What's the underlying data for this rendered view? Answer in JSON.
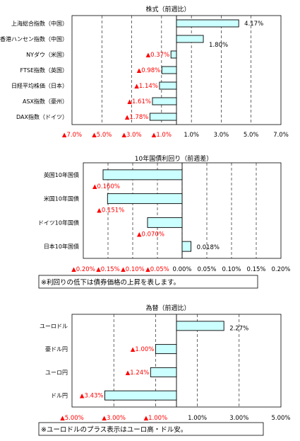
{
  "colors": {
    "bar_fill": "#ccffff",
    "bar_stroke": "#000000",
    "negative_label": "#ff0000",
    "text": "#000000"
  },
  "notes": {
    "bonds": "※利回りの低下は債券価格の上昇を表します。",
    "fx": "※ユーロドルのプラス表示はユーロ高・ドル安。"
  },
  "chart_data": [
    {
      "type": "bar",
      "orientation": "horizontal",
      "title": "株式（前週比）",
      "categories": [
        "上海総合指数（中国）",
        "香港ハンセン指数（中国）",
        "NYダウ（米国）",
        "FTSE指数（英国）",
        "日経平均株価（日本）",
        "ASX指数（豪州）",
        "DAX指数（ドイツ）"
      ],
      "values": [
        4.17,
        1.8,
        -0.37,
        -0.98,
        -1.14,
        -1.61,
        -1.78
      ],
      "value_labels": [
        "4.17%",
        "1.80%",
        "▲0.37%",
        "▲0.98%",
        "▲1.14%",
        "▲1.61%",
        "▲1.78%"
      ],
      "xlim": [
        -7,
        7
      ],
      "ticks": [
        -7,
        -5,
        -3,
        -1,
        1,
        3,
        5,
        7
      ],
      "tick_labels": [
        "▲7.0%",
        "▲5.0%",
        "▲3.0%",
        "▲1.0%",
        "1.0%",
        "3.0%",
        "5.0%",
        "7.0%"
      ],
      "grid": "vertical-dashed"
    },
    {
      "type": "bar",
      "orientation": "horizontal",
      "title": "10年国債利回り（前週差）",
      "categories": [
        "英国10年国債",
        "米国10年国債",
        "ドイツ10年国債",
        "日本10年国債"
      ],
      "values": [
        -0.16,
        -0.151,
        -0.07,
        0.018
      ],
      "value_labels": [
        "▲0.160%",
        "▲0.151%",
        "▲0.070%",
        "0.018%"
      ],
      "xlim": [
        -0.2,
        0.2
      ],
      "ticks": [
        -0.2,
        -0.15,
        -0.1,
        -0.05,
        0,
        0.05,
        0.1,
        0.15,
        0.2
      ],
      "tick_labels": [
        "▲0.20%",
        "▲0.15%",
        "▲0.10%",
        "▲0.05%",
        "0.00%",
        "0.05%",
        "0.10%",
        "0.15%",
        "0.20%"
      ],
      "grid": "vertical-dashed"
    },
    {
      "type": "bar",
      "orientation": "horizontal",
      "title": "為替（前週比）",
      "categories": [
        "ユーロドル",
        "豪ドル円",
        "ユーロ円",
        "ドル円"
      ],
      "values": [
        2.27,
        -1.0,
        -1.24,
        -3.43
      ],
      "value_labels": [
        "2.27%",
        "▲1.00%",
        "▲1.24%",
        "▲3.43%"
      ],
      "xlim": [
        -5,
        5
      ],
      "ticks": [
        -5,
        -3,
        -1,
        1,
        3,
        5
      ],
      "tick_labels": [
        "▲5.00%",
        "▲3.00%",
        "▲1.00%",
        "1.00%",
        "3.00%",
        "5.00%"
      ],
      "grid": "vertical-dashed"
    }
  ]
}
